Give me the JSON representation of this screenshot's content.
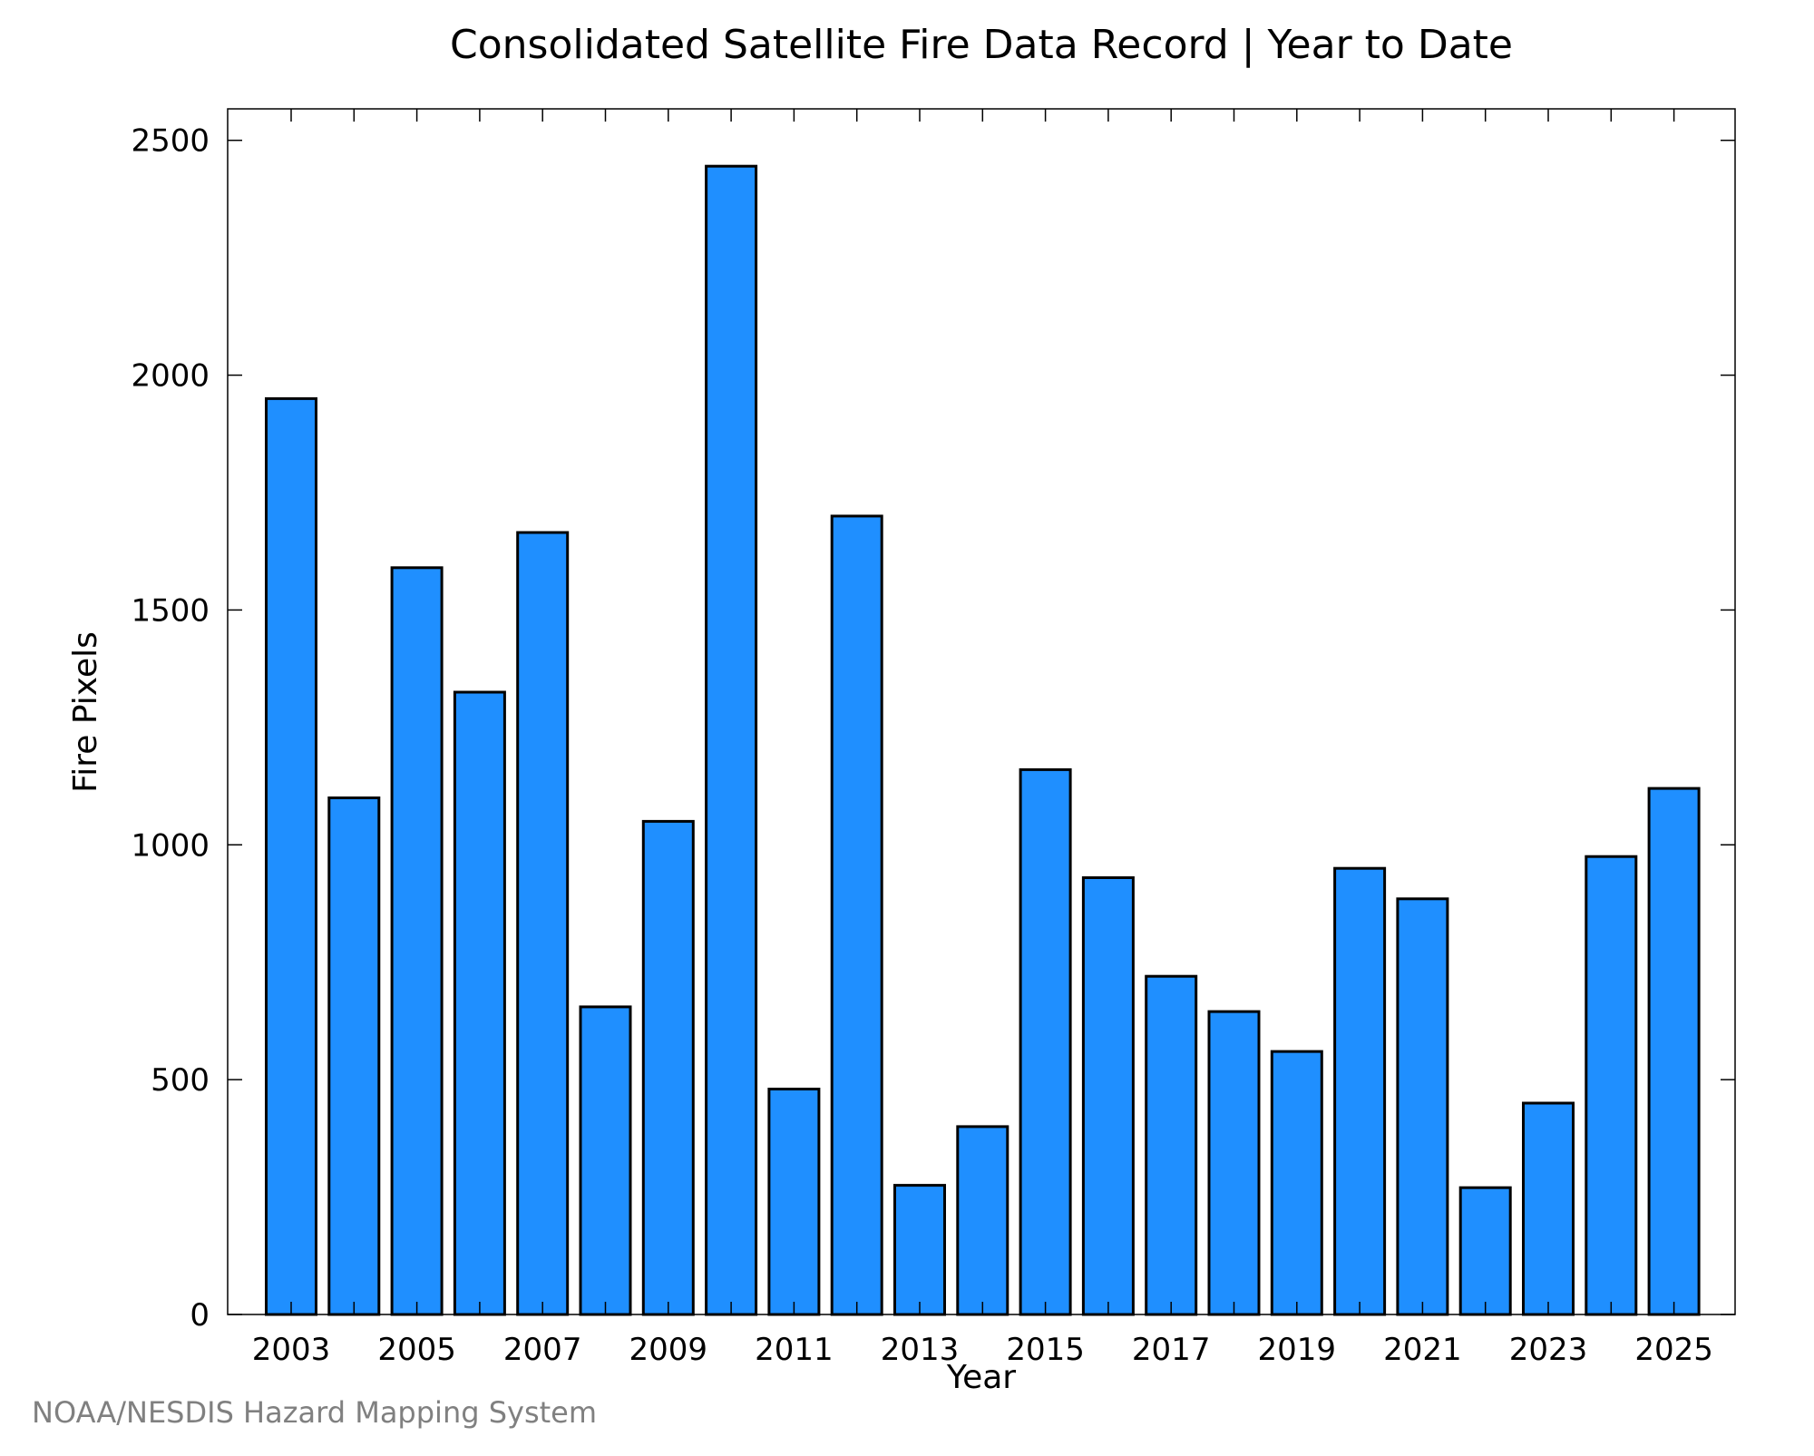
{
  "chart_data": {
    "type": "bar",
    "title": "Consolidated Satellite Fire Data Record | Year to Date",
    "xlabel": "Year",
    "ylabel": "Fire Pixels",
    "categories": [
      "2003",
      "2004",
      "2005",
      "2006",
      "2007",
      "2008",
      "2009",
      "2010",
      "2011",
      "2012",
      "2013",
      "2014",
      "2015",
      "2016",
      "2017",
      "2018",
      "2019",
      "2020",
      "2021",
      "2022",
      "2023",
      "2024",
      "2025"
    ],
    "values": [
      1950,
      1100,
      1590,
      1325,
      1665,
      655,
      1050,
      2445,
      480,
      1700,
      275,
      400,
      1160,
      930,
      720,
      645,
      560,
      950,
      885,
      270,
      450,
      975,
      1120
    ],
    "x_tick_labels": [
      "2003",
      "2005",
      "2007",
      "2009",
      "2011",
      "2013",
      "2015",
      "2017",
      "2019",
      "2021",
      "2023",
      "2025"
    ],
    "y_ticks": [
      0,
      500,
      1000,
      1500,
      2000,
      2500
    ],
    "ylim": [
      0,
      2567
    ],
    "grid": false,
    "bar_color": "#1f8fff",
    "bar_edge_color": "#000000"
  },
  "footer": {
    "credit": "NOAA/NESDIS Hazard Mapping System"
  }
}
